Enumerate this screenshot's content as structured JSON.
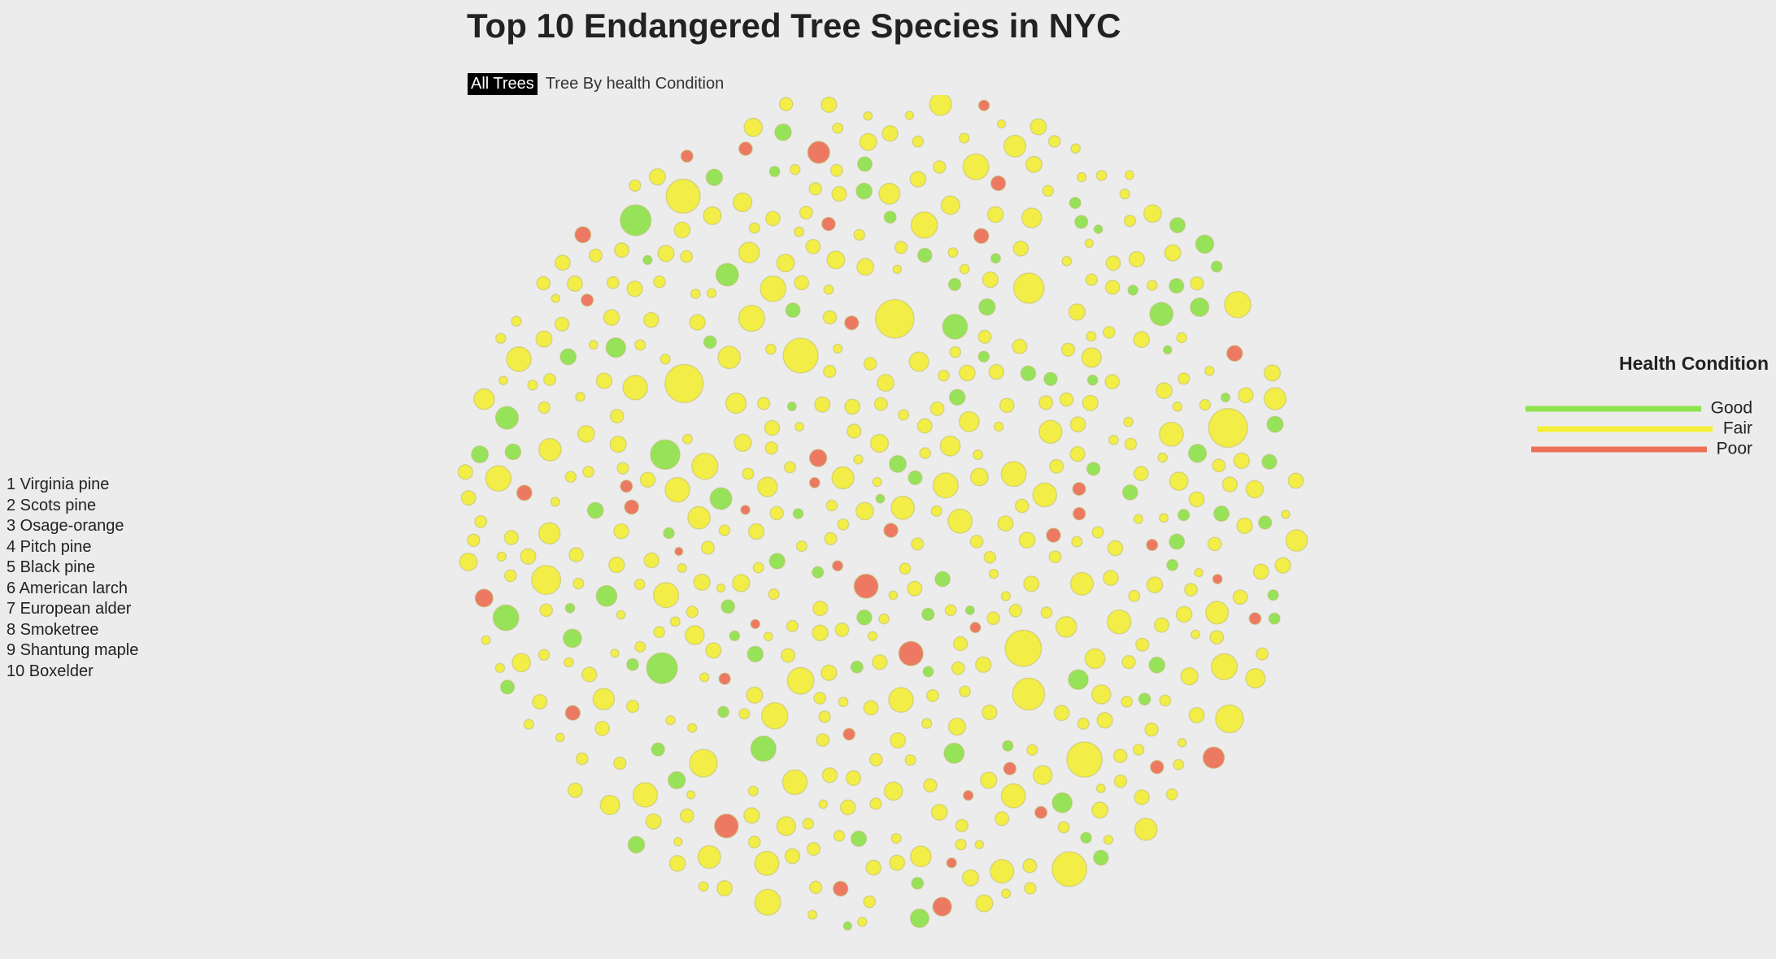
{
  "title": "Top 10 Endangered Tree Species in NYC",
  "buttons": [
    {
      "label": "All Trees",
      "active": true
    },
    {
      "label": "Tree By health Condition",
      "active": false
    }
  ],
  "species_list": [
    "1 Virginia pine",
    "2 Scots pine",
    "3 Osage-orange",
    "4 Pitch pine",
    "5 Black pine",
    "6 American larch",
    "7 European alder",
    "8 Smoketree",
    "9 Shantung maple",
    "10 Boxelder"
  ],
  "legend": {
    "title": "Health Condition",
    "items": [
      {
        "label": "Good",
        "color": "#8fe34e"
      },
      {
        "label": "Fair",
        "color": "#f4ef3a"
      },
      {
        "label": "Poor",
        "color": "#ee7057"
      }
    ]
  }
}
